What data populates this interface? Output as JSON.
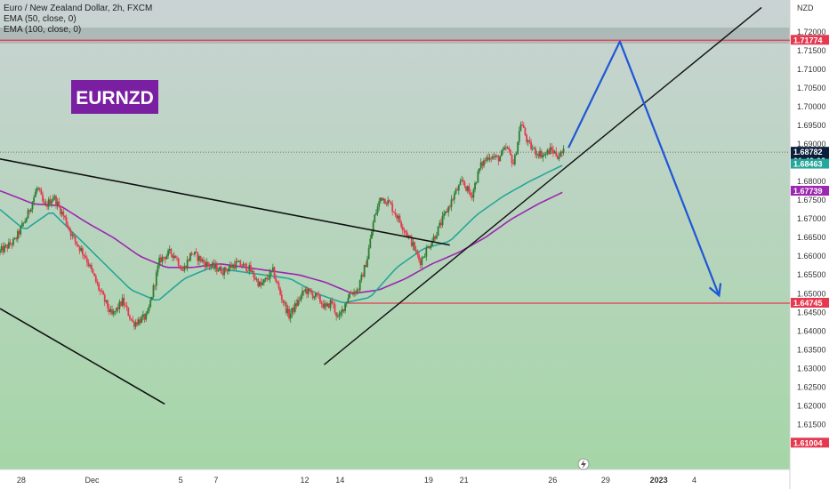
{
  "header": {
    "symbol_line": "Euro / New Zealand Dollar, 2h, FXCM",
    "ema50_line": "EMA (50, close, 0)",
    "ema100_line": "EMA (100, close, 0)"
  },
  "badge": {
    "text": "EURNZD",
    "color": "#7b1fa2"
  },
  "currency_label": "NZD",
  "colors": {
    "background_top": "#c9d3d3",
    "background_bottom": "#a5d6a7",
    "bull": "#2e7d32",
    "bear": "#e53950",
    "ema50": "#26a69a",
    "ema100": "#9c27b0",
    "resistance": "#e53950",
    "trendline": "#111111",
    "projection": "#1e56d6",
    "price_tag": "#0b1f3a"
  },
  "chart_data": {
    "type": "candlestick",
    "y_axis": {
      "ylim": [
        1.603,
        1.7285
      ],
      "ticks": [
        "1.72000",
        "1.71500",
        "1.71000",
        "1.70500",
        "1.70000",
        "1.69500",
        "1.69000",
        "1.68500",
        "1.68000",
        "1.67500",
        "1.67000",
        "1.66500",
        "1.66000",
        "1.65500",
        "1.65000",
        "1.64500",
        "1.64000",
        "1.63500",
        "1.63000",
        "1.62500",
        "1.62000",
        "1.61500"
      ],
      "tick_values": [
        1.72,
        1.715,
        1.71,
        1.705,
        1.7,
        1.695,
        1.69,
        1.685,
        1.68,
        1.675,
        1.67,
        1.665,
        1.66,
        1.655,
        1.65,
        1.645,
        1.64,
        1.635,
        1.63,
        1.625,
        1.62,
        1.615
      ]
    },
    "x_axis": {
      "range_days": [
        -0.4,
        44.2
      ],
      "tick_labels": [
        "28",
        "Dec",
        "5",
        "7",
        "12",
        "14",
        "19",
        "21",
        "26",
        "29",
        "2023",
        "4"
      ],
      "tick_days": [
        0.8,
        4.8,
        9.8,
        11.8,
        16.8,
        18.8,
        23.8,
        25.8,
        30.8,
        33.8,
        36.8,
        38.8
      ]
    },
    "candle_anchors": {
      "days": [
        -0.4,
        0.5,
        1.2,
        1.8,
        2.2,
        2.7,
        3.3,
        3.8,
        4.5,
        5.2,
        6.0,
        6.6,
        7.2,
        8.0,
        8.7,
        9.3,
        9.6,
        10.0,
        10.5,
        11.3,
        12.3,
        13.0,
        13.7,
        14.4,
        15.1,
        15.5,
        16.0,
        16.4,
        16.9,
        17.6,
        18.1,
        18.4,
        18.8,
        19.4,
        19.9,
        20.4,
        20.8,
        21.2,
        21.7,
        22.3,
        22.9,
        23.4,
        23.8,
        24.3,
        24.8,
        25.4,
        25.8,
        26.3,
        26.8,
        27.3,
        27.8,
        28.3,
        28.7,
        29.1,
        29.5,
        29.9,
        30.4,
        30.8,
        31.2,
        31.5
      ],
      "prices": [
        1.661,
        1.664,
        1.6705,
        1.6785,
        1.673,
        1.676,
        1.6705,
        1.665,
        1.66,
        1.652,
        1.644,
        1.648,
        1.642,
        1.644,
        1.659,
        1.661,
        1.66,
        1.656,
        1.661,
        1.658,
        1.656,
        1.658,
        1.657,
        1.652,
        1.656,
        1.65,
        1.644,
        1.647,
        1.651,
        1.649,
        1.646,
        1.648,
        1.643,
        1.65,
        1.651,
        1.659,
        1.67,
        1.676,
        1.674,
        1.669,
        1.664,
        1.6585,
        1.662,
        1.666,
        1.671,
        1.677,
        1.68,
        1.676,
        1.684,
        1.687,
        1.686,
        1.689,
        1.6845,
        1.696,
        1.69,
        1.688,
        1.687,
        1.6885,
        1.6868,
        1.6878
      ]
    },
    "ema50_anchors": {
      "days": [
        -0.4,
        1.0,
        2.5,
        4.0,
        5.5,
        7.0,
        8.5,
        10.0,
        11.5,
        13.0,
        14.5,
        16.0,
        17.5,
        19.0,
        20.5,
        22.0,
        23.5,
        25.0,
        26.5,
        28.0,
        29.5,
        31.0,
        31.5
      ],
      "values": [
        1.6725,
        1.667,
        1.672,
        1.665,
        1.658,
        1.651,
        1.648,
        1.654,
        1.657,
        1.656,
        1.655,
        1.654,
        1.65,
        1.6475,
        1.649,
        1.657,
        1.662,
        1.664,
        1.671,
        1.676,
        1.68,
        1.6835,
        1.6846
      ]
    },
    "ema100_anchors": {
      "days": [
        -0.4,
        1.5,
        3.0,
        4.5,
        6.0,
        7.5,
        9.0,
        10.5,
        12.0,
        13.5,
        15.0,
        16.5,
        18.0,
        19.5,
        21.0,
        22.5,
        24.0,
        25.5,
        27.0,
        28.5,
        30.0,
        31.5
      ],
      "values": [
        1.6775,
        1.674,
        1.6735,
        1.669,
        1.665,
        1.66,
        1.657,
        1.657,
        1.658,
        1.657,
        1.656,
        1.655,
        1.653,
        1.65,
        1.651,
        1.654,
        1.658,
        1.661,
        1.665,
        1.67,
        1.674,
        1.6774
      ]
    },
    "levels": [
      {
        "name": "resistance",
        "price": 1.71774,
        "label": "1.71774"
      },
      {
        "name": "support",
        "price": 1.64745,
        "label": "1.64745"
      }
    ],
    "price_tags": [
      {
        "name": "last-price",
        "price": 1.68782,
        "label": "1.68782",
        "sublabel": "01:49:02",
        "color": "#0b1f3a"
      },
      {
        "name": "ema50-value",
        "price": 1.68463,
        "label": "1.68463",
        "color": "#26a69a"
      },
      {
        "name": "ema100-value",
        "price": 1.67739,
        "label": "1.67739",
        "color": "#9c27b0"
      },
      {
        "name": "bottom-value",
        "price": 1.61004,
        "label": "1.61004",
        "color": "#e53950"
      }
    ],
    "drawings": {
      "rising_trendline": [
        [
          17.9,
          1.631
        ],
        [
          42.6,
          1.7265
        ]
      ],
      "falling_trendline": [
        [
          -0.4,
          1.686
        ],
        [
          25.0,
          1.663
        ]
      ],
      "lower_trendline": [
        [
          -0.4,
          1.646
        ],
        [
          8.9,
          1.6205
        ]
      ],
      "projection": [
        [
          31.7,
          1.689
        ],
        [
          34.6,
          1.7174
        ],
        [
          40.2,
          1.6495
        ]
      ]
    }
  }
}
